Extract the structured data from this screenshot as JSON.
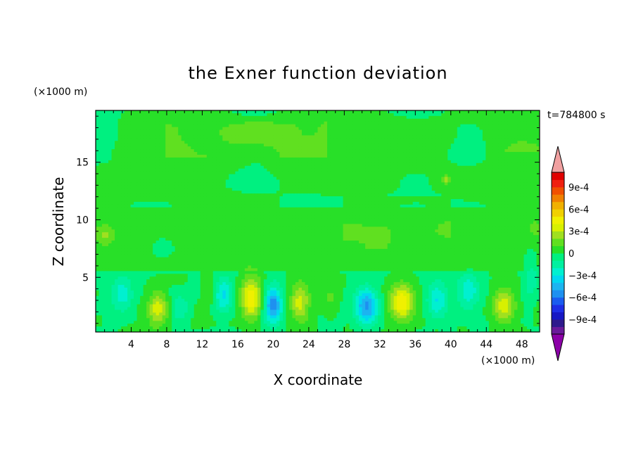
{
  "chart_data": {
    "type": "heatmap",
    "title": "the Exner function deviation",
    "xlabel": "X coordinate",
    "ylabel": "Z coordinate",
    "x_unit": "(×1000 m)",
    "y_unit": "(×1000 m)",
    "time_label": "t=784800 s",
    "xlim": [
      0,
      50
    ],
    "ylim": [
      0.25,
      19.5
    ],
    "xticks": [
      4,
      8,
      12,
      16,
      20,
      24,
      28,
      32,
      36,
      40,
      44,
      48
    ],
    "yticks": [
      5,
      10,
      15
    ],
    "colorbar": {
      "levels": [
        -0.0011,
        -0.001,
        -0.0009,
        -0.0008,
        -0.0007,
        -0.0006,
        -0.0005,
        -0.0004,
        -0.0003,
        -0.0002,
        -0.0001,
        0,
        0.0001,
        0.0002,
        0.0003,
        0.0004,
        0.0005,
        0.0006,
        0.0007,
        0.0008,
        0.0009,
        0.001,
        0.0011
      ],
      "colors": [
        "#6a1a9a",
        "#2e1a8c",
        "#1717c4",
        "#1e2ee6",
        "#1b5cf0",
        "#1e90f0",
        "#1cb4f0",
        "#00d8f0",
        "#00f0d0",
        "#00f0a0",
        "#00f080",
        "#28e028",
        "#60e020",
        "#a0e020",
        "#d8f000",
        "#f0f000",
        "#f0d000",
        "#f0b000",
        "#f08000",
        "#f05000",
        "#f02010",
        "#e00000"
      ],
      "under_color": "#8c00a8",
      "over_color": "#f0a0a0",
      "tick_labels": [
        "9e-4",
        "6e-4",
        "3e-4",
        "0",
        "−3e-4",
        "−6e-4",
        "−9e-4"
      ]
    },
    "features": [
      {
        "x": 7.0,
        "z": 2.3,
        "value": 0.00035,
        "sx": 1.1,
        "sz": 1.5
      },
      {
        "x": 17.5,
        "z": 3.2,
        "value": 0.00048,
        "sx": 1.2,
        "sz": 1.7
      },
      {
        "x": 23.0,
        "z": 2.8,
        "value": 0.00036,
        "sx": 1.1,
        "sz": 1.6
      },
      {
        "x": 34.5,
        "z": 2.8,
        "value": 0.00048,
        "sx": 1.3,
        "sz": 1.6
      },
      {
        "x": 46.0,
        "z": 2.5,
        "value": 0.00038,
        "sx": 1.2,
        "sz": 1.5
      },
      {
        "x": 13.0,
        "z": 3.8,
        "value": 0.00012,
        "sx": 0.8,
        "sz": 1.4
      },
      {
        "x": 26.5,
        "z": 3.2,
        "value": 0.00012,
        "sx": 0.9,
        "sz": 1.4
      },
      {
        "x": 20.0,
        "z": 2.6,
        "value": -0.00058,
        "sx": 1.0,
        "sz": 1.6
      },
      {
        "x": 30.5,
        "z": 2.5,
        "value": -0.00055,
        "sx": 1.3,
        "sz": 1.5
      },
      {
        "x": 14.3,
        "z": 3.5,
        "value": -0.00033,
        "sx": 1.1,
        "sz": 1.6
      },
      {
        "x": 38.5,
        "z": 3.0,
        "value": -0.0003,
        "sx": 1.2,
        "sz": 1.5
      },
      {
        "x": 42.0,
        "z": 3.8,
        "value": -0.00028,
        "sx": 1.3,
        "sz": 1.5
      },
      {
        "x": 3.0,
        "z": 3.5,
        "value": -0.00026,
        "sx": 1.2,
        "sz": 1.6
      },
      {
        "x": 9.5,
        "z": 2.3,
        "value": -0.0002,
        "sx": 1.0,
        "sz": 1.3
      },
      {
        "x": 49.0,
        "z": 5.0,
        "value": -0.00018,
        "sx": 0.8,
        "sz": 2.0
      },
      {
        "x": 7.5,
        "z": 7.5,
        "value": -0.00012,
        "sx": 1.3,
        "sz": 0.9
      },
      {
        "x": 1.0,
        "z": 8.6,
        "value": 0.00016,
        "sx": 0.9,
        "sz": 0.8
      },
      {
        "x": 49.5,
        "z": 9.2,
        "value": 0.00012,
        "sx": 0.6,
        "sz": 0.6
      },
      {
        "x": 39.5,
        "z": 13.5,
        "value": 0.0002,
        "sx": 0.4,
        "sz": 0.4
      }
    ]
  }
}
